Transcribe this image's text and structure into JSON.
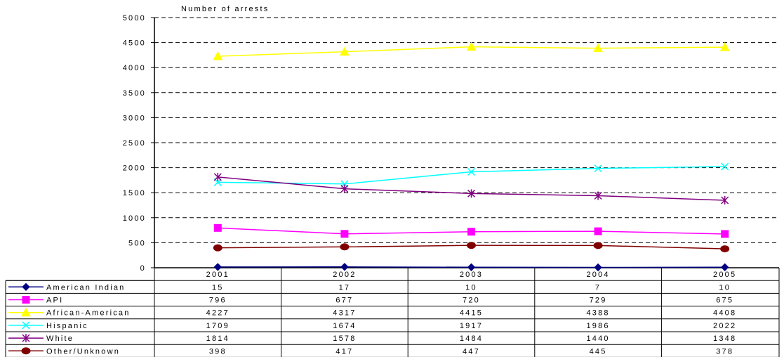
{
  "chart_data": {
    "type": "line",
    "ylabel": "Number of arrests",
    "categories": [
      "2001",
      "2002",
      "2003",
      "2004",
      "2005"
    ],
    "ylim": [
      0,
      5000
    ],
    "yticks": [
      0,
      500,
      1000,
      1500,
      2000,
      2500,
      3000,
      3500,
      4000,
      4500,
      5000
    ],
    "grid": "horizontal-dashed",
    "legend": "data-table-below",
    "series": [
      {
        "name": "American Indian",
        "values": [
          15,
          17,
          10,
          7,
          10
        ],
        "color": "#000080",
        "marker": "diamond"
      },
      {
        "name": "API",
        "values": [
          796,
          677,
          720,
          729,
          675
        ],
        "color": "#ff00ff",
        "marker": "square"
      },
      {
        "name": "African-American",
        "values": [
          4227,
          4317,
          4415,
          4388,
          4408
        ],
        "color": "#ffff00",
        "marker": "triangle"
      },
      {
        "name": "Hispanic",
        "values": [
          1709,
          1674,
          1917,
          1986,
          2022
        ],
        "color": "#00ffff",
        "marker": "x"
      },
      {
        "name": "White",
        "values": [
          1814,
          1578,
          1484,
          1440,
          1348
        ],
        "color": "#800080",
        "marker": "star"
      },
      {
        "name": "Other/Unknown",
        "values": [
          398,
          417,
          447,
          445,
          378
        ],
        "color": "#800000",
        "marker": "circle"
      }
    ]
  }
}
